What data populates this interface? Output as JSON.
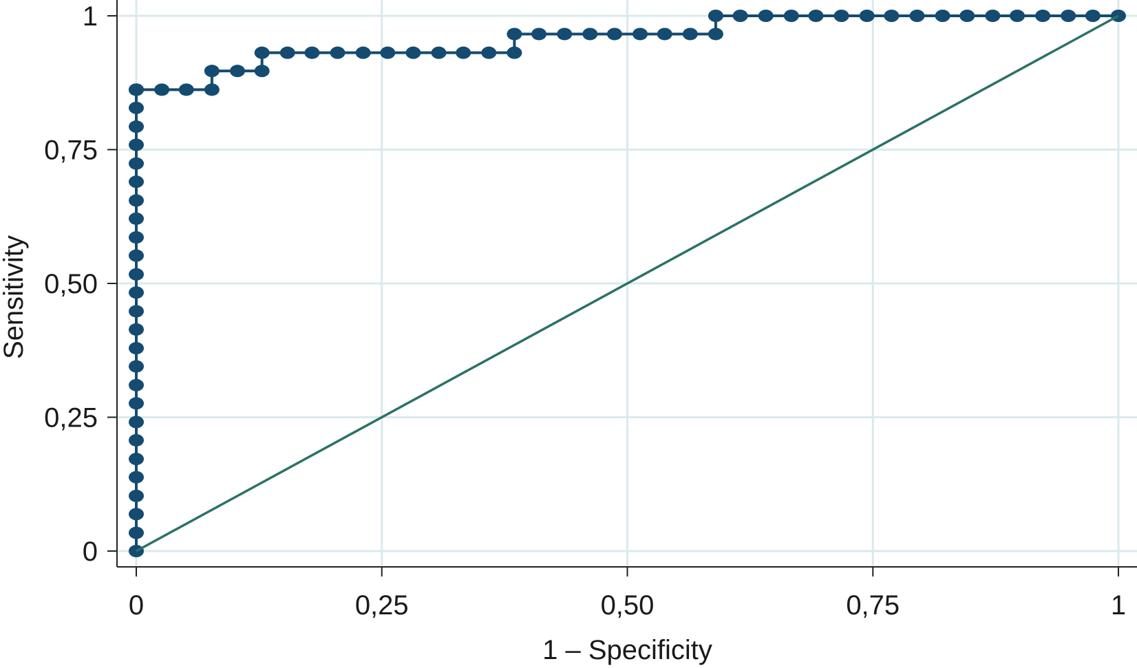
{
  "chart_data": {
    "type": "line",
    "title": "",
    "xlabel": "1 – Specificity",
    "ylabel": "Sensitivity",
    "xlim": [
      0,
      1
    ],
    "ylim": [
      0,
      1
    ],
    "grid": true,
    "x_ticks": [
      {
        "value": 0,
        "label": "0"
      },
      {
        "value": 0.25,
        "label": "0,25"
      },
      {
        "value": 0.5,
        "label": "0,50"
      },
      {
        "value": 0.75,
        "label": "0,75"
      },
      {
        "value": 1,
        "label": "1"
      }
    ],
    "y_ticks": [
      {
        "value": 0,
        "label": "0"
      },
      {
        "value": 0.25,
        "label": "0,25"
      },
      {
        "value": 0.5,
        "label": "0,50"
      },
      {
        "value": 0.75,
        "label": "0,75"
      },
      {
        "value": 1,
        "label": "1"
      }
    ],
    "colors": {
      "roc": "#154b70",
      "reference": "#2a7265",
      "grid": "#dbe9ec",
      "axis": "#222222"
    },
    "series": [
      {
        "style": "step-markers",
        "x": [
          0,
          0,
          0,
          0,
          0,
          0,
          0,
          0,
          0,
          0,
          0,
          0,
          0,
          0,
          0,
          0,
          0,
          0,
          0,
          0,
          0,
          0,
          0,
          0,
          0,
          0,
          0,
          0,
          0,
          0.026,
          0.051,
          0.077,
          0.077,
          0.103,
          0.128,
          0.128,
          0.154,
          0.179,
          0.205,
          0.231,
          0.256,
          0.282,
          0.308,
          0.333,
          0.359,
          0.385,
          0.385,
          0.41,
          0.436,
          0.462,
          0.487,
          0.513,
          0.538,
          0.564,
          0.59,
          0.59,
          0.615,
          0.641,
          0.667,
          0.692,
          0.718,
          0.744,
          0.769,
          0.795,
          0.821,
          0.846,
          0.872,
          0.897,
          0.923,
          0.949,
          0.974,
          1
        ],
        "y": [
          0,
          0.034,
          0.069,
          0.103,
          0.138,
          0.172,
          0.207,
          0.241,
          0.276,
          0.31,
          0.345,
          0.379,
          0.414,
          0.448,
          0.483,
          0.517,
          0.552,
          0.586,
          0.621,
          0.655,
          0.69,
          0.724,
          0.759,
          0.793,
          0.828,
          0.862,
          0.862,
          0.862,
          0.862,
          0.862,
          0.862,
          0.862,
          0.897,
          0.897,
          0.897,
          0.931,
          0.931,
          0.931,
          0.931,
          0.931,
          0.931,
          0.931,
          0.931,
          0.931,
          0.931,
          0.931,
          0.966,
          0.966,
          0.966,
          0.966,
          0.966,
          0.966,
          0.966,
          0.966,
          0.966,
          1,
          1,
          1,
          1,
          1,
          1,
          1,
          1,
          1,
          1,
          1,
          1,
          1,
          1,
          1,
          1,
          1
        ]
      },
      {
        "style": "line",
        "x": [
          0,
          1
        ],
        "y": [
          0,
          1
        ]
      }
    ]
  }
}
